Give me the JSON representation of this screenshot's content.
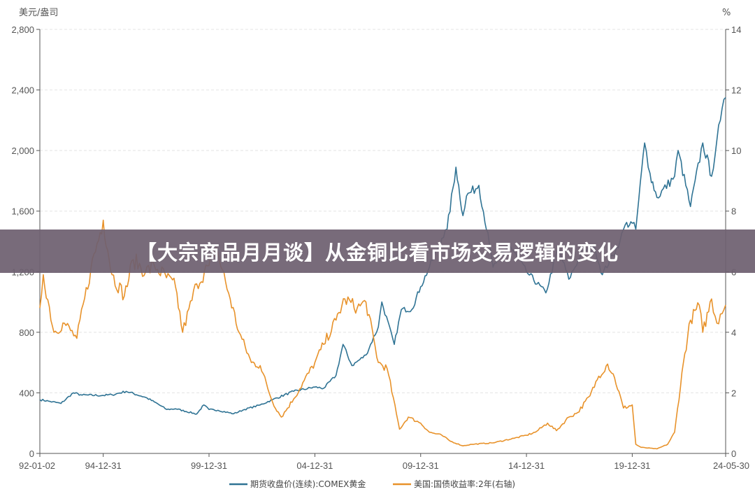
{
  "banner": {
    "title": "【大宗商品月月谈】从金铜比看市场交易逻辑的变化"
  },
  "colors": {
    "gold": "#2f7394",
    "yield": "#e8922a",
    "grid": "#e4e4e4",
    "axis": "#555555",
    "banner": "#6e6070"
  },
  "chart_data": {
    "type": "line",
    "left_unit": "美元/盎司",
    "right_unit": "%",
    "y_left": {
      "min": 0,
      "max": 2800,
      "ticks": [
        "0",
        "400",
        "800",
        "1,200",
        "1,600",
        "2,000",
        "2,400",
        "2,800"
      ]
    },
    "y_right": {
      "min": 0,
      "max": 14,
      "ticks": [
        "0",
        "2",
        "4",
        "6",
        "8",
        "10",
        "12",
        "14"
      ]
    },
    "x_range": [
      "1992-01-02",
      "2024-05-30"
    ],
    "x_ticks": [
      "92-01-02",
      "94-12-31",
      "99-12-31",
      "04-12-31",
      "09-12-31",
      "14-12-31",
      "19-12-31",
      "24-05-30"
    ],
    "x_tick_dates": [
      "1992-01-02",
      "1994-12-31",
      "1999-12-31",
      "2004-12-31",
      "2009-12-31",
      "2014-12-31",
      "2019-12-31",
      "2024-05-30"
    ],
    "series": [
      {
        "name": "期货收盘价(连续):COMEX黄金",
        "axis": "left",
        "color": "#2f7394",
        "points": [
          [
            "1992-01-02",
            355
          ],
          [
            "1992-06-01",
            345
          ],
          [
            "1993-01-01",
            330
          ],
          [
            "1993-08-01",
            400
          ],
          [
            "1994-01-01",
            385
          ],
          [
            "1994-12-31",
            383
          ],
          [
            "1995-06-01",
            387
          ],
          [
            "1996-02-01",
            410
          ],
          [
            "1996-12-31",
            370
          ],
          [
            "1997-06-01",
            340
          ],
          [
            "1997-12-31",
            290
          ],
          [
            "1998-06-01",
            295
          ],
          [
            "1999-06-01",
            260
          ],
          [
            "1999-10-01",
            320
          ],
          [
            "1999-12-31",
            290
          ],
          [
            "2000-06-01",
            285
          ],
          [
            "2001-03-01",
            262
          ],
          [
            "2001-09-01",
            290
          ],
          [
            "2002-06-01",
            320
          ],
          [
            "2003-01-01",
            355
          ],
          [
            "2003-12-31",
            410
          ],
          [
            "2004-12-31",
            438
          ],
          [
            "2005-06-01",
            430
          ],
          [
            "2005-12-31",
            515
          ],
          [
            "2006-05-01",
            720
          ],
          [
            "2006-10-01",
            580
          ],
          [
            "2007-06-01",
            650
          ],
          [
            "2007-12-31",
            835
          ],
          [
            "2008-03-01",
            1000
          ],
          [
            "2008-10-01",
            720
          ],
          [
            "2009-02-01",
            950
          ],
          [
            "2009-08-01",
            950
          ],
          [
            "2009-12-31",
            1100
          ],
          [
            "2010-06-01",
            1230
          ],
          [
            "2010-12-31",
            1420
          ],
          [
            "2011-04-01",
            1480
          ],
          [
            "2011-09-01",
            1890
          ],
          [
            "2011-12-31",
            1570
          ],
          [
            "2012-03-01",
            1700
          ],
          [
            "2012-10-01",
            1770
          ],
          [
            "2013-04-01",
            1380
          ],
          [
            "2013-06-01",
            1230
          ],
          [
            "2014-03-01",
            1380
          ],
          [
            "2014-12-31",
            1200
          ],
          [
            "2015-12-01",
            1060
          ],
          [
            "2016-07-01",
            1360
          ],
          [
            "2016-12-31",
            1150
          ],
          [
            "2017-09-01",
            1340
          ],
          [
            "2018-04-01",
            1350
          ],
          [
            "2018-08-01",
            1180
          ],
          [
            "2019-06-01",
            1400
          ],
          [
            "2019-09-01",
            1510
          ],
          [
            "2019-12-31",
            1520
          ],
          [
            "2020-03-01",
            1480
          ],
          [
            "2020-08-01",
            2050
          ],
          [
            "2020-11-01",
            1850
          ],
          [
            "2021-03-01",
            1690
          ],
          [
            "2021-12-31",
            1830
          ],
          [
            "2022-03-01",
            2000
          ],
          [
            "2022-10-01",
            1630
          ],
          [
            "2023-05-01",
            2050
          ],
          [
            "2023-10-01",
            1830
          ],
          [
            "2023-12-31",
            2070
          ],
          [
            "2024-03-01",
            2200
          ],
          [
            "2024-05-30",
            2350
          ]
        ]
      },
      {
        "name": "美国:国债收益率:2年(右轴)",
        "axis": "right",
        "color": "#e8922a",
        "points": [
          [
            "1992-01-02",
            4.8
          ],
          [
            "1992-03-01",
            5.9
          ],
          [
            "1992-09-01",
            4.0
          ],
          [
            "1993-03-01",
            4.3
          ],
          [
            "1993-10-01",
            3.8
          ],
          [
            "1994-06-01",
            6.1
          ],
          [
            "1994-12-31",
            7.7
          ],
          [
            "1995-06-01",
            5.9
          ],
          [
            "1995-12-31",
            5.2
          ],
          [
            "1996-06-01",
            6.4
          ],
          [
            "1997-01-01",
            6.0
          ],
          [
            "1997-06-01",
            6.2
          ],
          [
            "1998-06-01",
            5.5
          ],
          [
            "1998-10-01",
            4.0
          ],
          [
            "1999-06-01",
            5.6
          ],
          [
            "1999-12-31",
            6.2
          ],
          [
            "2000-05-01",
            6.8
          ],
          [
            "2000-12-31",
            5.1
          ],
          [
            "2001-06-01",
            4.0
          ],
          [
            "2001-12-31",
            3.0
          ],
          [
            "2002-06-01",
            2.9
          ],
          [
            "2002-12-31",
            1.7
          ],
          [
            "2003-06-01",
            1.2
          ],
          [
            "2004-01-01",
            1.8
          ],
          [
            "2004-12-31",
            3.0
          ],
          [
            "2005-06-01",
            3.6
          ],
          [
            "2005-12-31",
            4.4
          ],
          [
            "2006-06-01",
            5.1
          ],
          [
            "2007-01-01",
            4.8
          ],
          [
            "2007-06-01",
            5.0
          ],
          [
            "2007-12-31",
            3.0
          ],
          [
            "2008-06-01",
            2.8
          ],
          [
            "2008-12-31",
            0.8
          ],
          [
            "2009-06-01",
            1.2
          ],
          [
            "2009-12-31",
            1.0
          ],
          [
            "2010-06-01",
            0.7
          ],
          [
            "2010-12-31",
            0.6
          ],
          [
            "2011-06-01",
            0.4
          ],
          [
            "2011-12-31",
            0.25
          ],
          [
            "2012-06-01",
            0.3
          ],
          [
            "2013-06-01",
            0.35
          ],
          [
            "2014-06-01",
            0.5
          ],
          [
            "2014-12-31",
            0.6
          ],
          [
            "2015-06-01",
            0.7
          ],
          [
            "2015-12-31",
            1.0
          ],
          [
            "2016-06-01",
            0.75
          ],
          [
            "2016-12-31",
            1.2
          ],
          [
            "2017-06-01",
            1.35
          ],
          [
            "2017-12-31",
            1.9
          ],
          [
            "2018-06-01",
            2.55
          ],
          [
            "2018-11-01",
            2.95
          ],
          [
            "2019-03-01",
            2.5
          ],
          [
            "2019-08-01",
            1.5
          ],
          [
            "2019-12-31",
            1.6
          ],
          [
            "2020-03-01",
            0.3
          ],
          [
            "2020-06-01",
            0.2
          ],
          [
            "2021-03-01",
            0.15
          ],
          [
            "2021-09-01",
            0.3
          ],
          [
            "2021-12-31",
            0.7
          ],
          [
            "2022-06-01",
            3.0
          ],
          [
            "2022-10-01",
            4.4
          ],
          [
            "2023-03-01",
            4.9
          ],
          [
            "2023-05-01",
            4.0
          ],
          [
            "2023-10-01",
            5.1
          ],
          [
            "2023-12-31",
            4.3
          ],
          [
            "2024-03-01",
            4.6
          ],
          [
            "2024-05-30",
            4.9
          ]
        ]
      }
    ]
  }
}
